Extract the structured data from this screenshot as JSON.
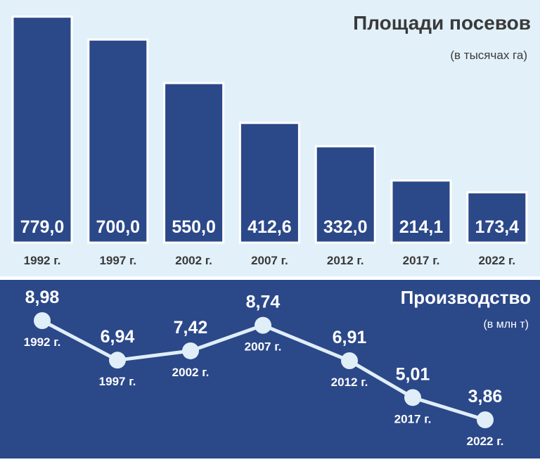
{
  "colors": {
    "panel_top": "#E2F0F9",
    "panel_bottom": "#2B4889",
    "bar_fill": "#2B4889",
    "bar_border": "#FFFFFF",
    "text_dark": "#3A3A3A",
    "line": "#E0EEF8",
    "white": "#FFFFFF"
  },
  "chart_data": [
    {
      "type": "bar",
      "title": "Площади посевов",
      "subtitle": "(в тысячах га)",
      "categories": [
        "1992 г.",
        "1997 г.",
        "2002 г.",
        "2007 г.",
        "2012 г.",
        "2017 г.",
        "2022 г."
      ],
      "values": [
        779.0,
        700.0,
        550.0,
        412.6,
        332.0,
        214.1,
        173.4
      ],
      "value_labels": [
        "779,0",
        "700,0",
        "550,0",
        "412,6",
        "332,0",
        "214,1",
        "173,4"
      ],
      "ylim": [
        0,
        800
      ],
      "grid": false
    },
    {
      "type": "line",
      "title": "Производство",
      "subtitle": "(в млн т)",
      "categories": [
        "1992 г.",
        "1997 г.",
        "2002 г.",
        "2007 г.",
        "2012 г.",
        "2017 г.",
        "2022 г."
      ],
      "values": [
        8.98,
        6.94,
        7.42,
        8.74,
        6.91,
        5.01,
        3.86
      ],
      "value_labels": [
        "8,98",
        "6,94",
        "7,42",
        "8,74",
        "6,91",
        "5,01",
        "3,86"
      ],
      "ylim": [
        3,
        10
      ],
      "grid": false
    }
  ]
}
